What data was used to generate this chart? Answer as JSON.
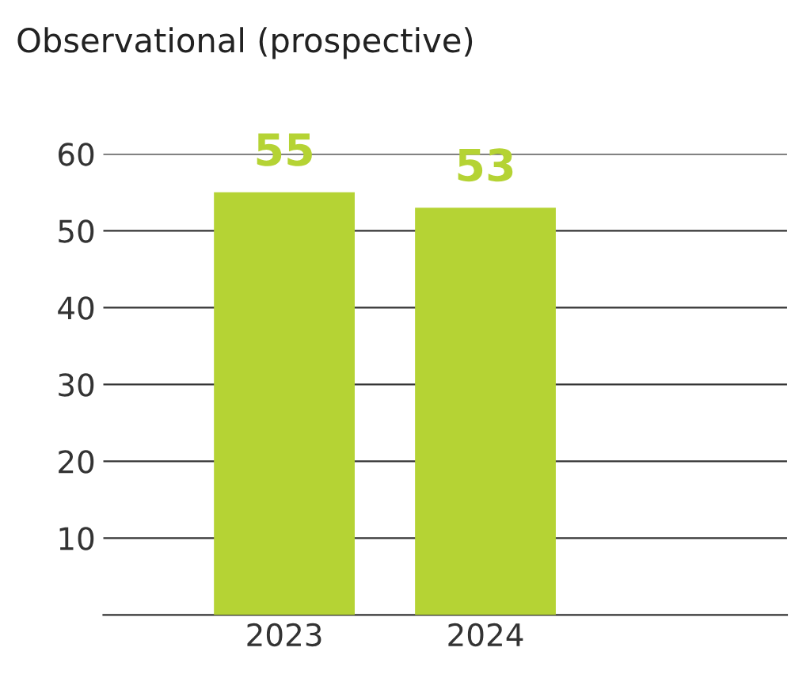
{
  "chart_data": {
    "type": "bar",
    "title": "Observational (prospective)",
    "categories": [
      "2023",
      "2024",
      null
    ],
    "series": [
      {
        "color": "#b5d334",
        "values": [
          55,
          53,
          null
        ]
      }
    ],
    "ylim": [
      0,
      60
    ],
    "yticks": [
      10,
      20,
      30,
      40,
      50,
      60
    ],
    "grid": "y",
    "data_labels": true
  }
}
